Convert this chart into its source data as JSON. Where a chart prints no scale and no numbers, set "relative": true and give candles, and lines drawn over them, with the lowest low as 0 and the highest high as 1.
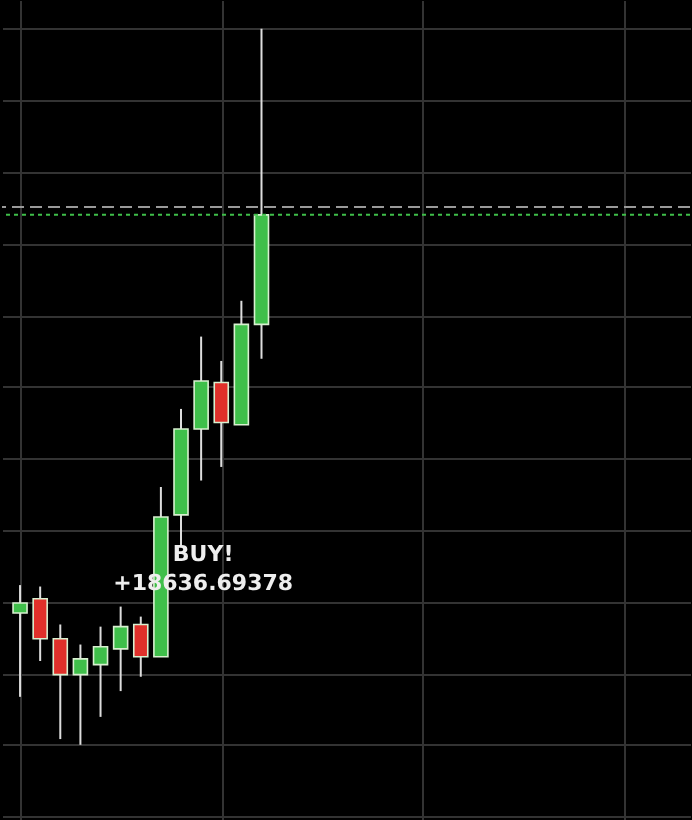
{
  "chart_data": {
    "type": "candlestick",
    "relative": true,
    "tick_labels": false,
    "grid": true,
    "categories": [
      null,
      null,
      null,
      null,
      null,
      null,
      null,
      null,
      null,
      null,
      null,
      null,
      null
    ],
    "ohlc": [
      [
        0.184,
        0.223,
        0.067,
        0.198
      ],
      [
        0.204,
        0.221,
        0.117,
        0.148
      ],
      [
        0.148,
        0.168,
        0.008,
        0.098
      ],
      [
        0.098,
        0.14,
        0,
        0.12
      ],
      [
        0.112,
        0.165,
        0.039,
        0.137
      ],
      [
        0.134,
        0.193,
        0.075,
        0.165
      ],
      [
        0.168,
        0.179,
        0.095,
        0.123
      ],
      [
        0.123,
        0.36,
        0.123,
        0.318
      ],
      [
        0.321,
        0.469,
        0.277,
        0.441
      ],
      [
        0.441,
        0.57,
        0.369,
        0.508
      ],
      [
        0.506,
        0.536,
        0.388,
        0.45
      ],
      [
        0.447,
        0.62,
        0.447,
        0.587
      ],
      [
        0.587,
        1,
        0.539,
        0.74
      ]
    ],
    "colors": [
      "#3fbf4a",
      "#e0302a",
      "#e0302a",
      "#3fbf4a",
      "#3fbf4a",
      "#3fbf4a",
      "#e0302a",
      "#3fbf4a",
      "#3fbf4a",
      "#3fbf4a",
      "#e0302a",
      "#3fbf4a",
      "#3fbf4a"
    ],
    "ref_lines": [
      {
        "axis": "y",
        "value": 0.751,
        "color": "#9a9a9a",
        "line_style": "dashed"
      },
      {
        "axis": "y",
        "value": 0.74,
        "color": "#3fbf4a",
        "line_style": "dotted"
      }
    ],
    "annotations": [
      "BUY!",
      "+18636.69378"
    ]
  }
}
